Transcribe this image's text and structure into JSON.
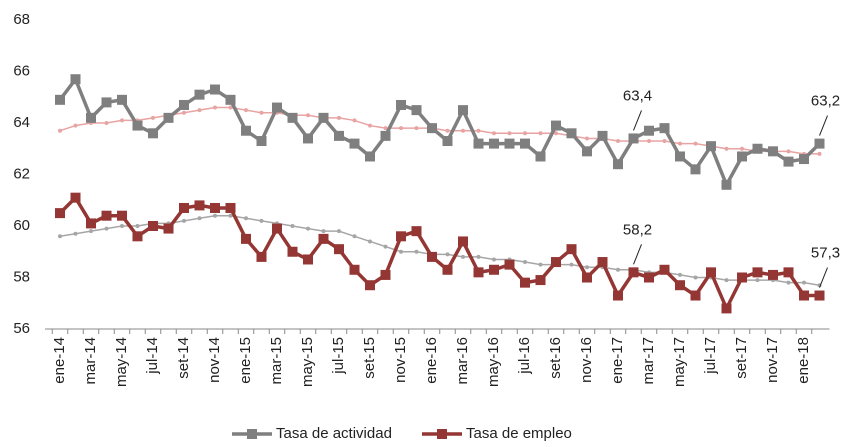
{
  "chart_data": {
    "type": "line",
    "categories": [
      "ene-14",
      null,
      "mar-14",
      null,
      "may-14",
      null,
      "jul-14",
      null,
      "set-14",
      null,
      "nov-14",
      null,
      "ene-15",
      null,
      "mar-15",
      null,
      "may-15",
      null,
      "jul-15",
      null,
      "set-15",
      null,
      "nov-15",
      null,
      "ene-16",
      null,
      "mar-16",
      null,
      "may-16",
      null,
      "jul-16",
      null,
      "set-16",
      null,
      "nov-16",
      null,
      "ene-17",
      null,
      "mar-17",
      null,
      "may-17",
      null,
      "jul-17",
      null,
      "set-17",
      null,
      "nov-17",
      null,
      "ene-18",
      null
    ],
    "series": [
      {
        "name": "Tasa de actividad",
        "color": "#7f7f7f",
        "marker": "square",
        "values": [
          64.9,
          65.7,
          64.2,
          64.8,
          64.9,
          63.9,
          63.6,
          64.2,
          64.7,
          65.1,
          65.3,
          64.9,
          63.7,
          63.3,
          64.6,
          64.2,
          63.4,
          64.2,
          63.5,
          63.2,
          62.7,
          63.5,
          64.7,
          64.5,
          63.8,
          63.3,
          64.5,
          63.2,
          63.2,
          63.2,
          63.2,
          62.7,
          63.9,
          63.6,
          62.9,
          63.5,
          62.4,
          63.4,
          63.7,
          63.8,
          62.7,
          62.2,
          63.1,
          61.6,
          62.7,
          63.0,
          62.9,
          62.5,
          62.6,
          63.2
        ],
        "value_labels": [
          null,
          null,
          null,
          null,
          null,
          null,
          null,
          null,
          null,
          null,
          null,
          null,
          null,
          null,
          null,
          null,
          null,
          null,
          null,
          null,
          null,
          null,
          null,
          null,
          null,
          null,
          null,
          null,
          null,
          null,
          null,
          null,
          null,
          null,
          null,
          null,
          null,
          "63,4",
          null,
          null,
          null,
          null,
          null,
          null,
          null,
          null,
          null,
          null,
          null,
          "63,2"
        ]
      },
      {
        "name": "Tasa de empleo",
        "color": "#943634",
        "marker": "square",
        "values": [
          60.5,
          61.1,
          60.1,
          60.4,
          60.4,
          59.6,
          60.0,
          59.9,
          60.7,
          60.8,
          60.7,
          60.7,
          59.5,
          58.8,
          59.9,
          59.0,
          58.7,
          59.5,
          59.1,
          58.3,
          57.7,
          58.1,
          59.6,
          59.8,
          58.8,
          58.3,
          59.4,
          58.2,
          58.3,
          58.5,
          57.8,
          57.9,
          58.6,
          59.1,
          58.0,
          58.6,
          57.3,
          58.2,
          58.0,
          58.3,
          57.7,
          57.3,
          58.2,
          56.8,
          58.0,
          58.2,
          58.1,
          58.2,
          57.3,
          57.3
        ],
        "value_labels": [
          null,
          null,
          null,
          null,
          null,
          null,
          null,
          null,
          null,
          null,
          null,
          null,
          null,
          null,
          null,
          null,
          null,
          null,
          null,
          null,
          null,
          null,
          null,
          null,
          null,
          null,
          null,
          null,
          null,
          null,
          null,
          null,
          null,
          null,
          null,
          null,
          null,
          "58,2",
          null,
          null,
          null,
          null,
          null,
          null,
          null,
          null,
          null,
          null,
          null,
          "57,3"
        ]
      },
      {
        "color": "#e8a3a3",
        "marker": "dot",
        "values": [
          63.7,
          63.9,
          64.0,
          64.0,
          64.1,
          64.1,
          64.2,
          64.3,
          64.4,
          64.5,
          64.6,
          64.6,
          64.5,
          64.4,
          64.4,
          64.3,
          64.3,
          64.2,
          64.2,
          64.1,
          63.9,
          63.8,
          63.8,
          63.8,
          63.8,
          63.7,
          63.7,
          63.7,
          63.6,
          63.6,
          63.6,
          63.6,
          63.6,
          63.5,
          63.4,
          63.4,
          63.3,
          63.3,
          63.3,
          63.3,
          63.2,
          63.2,
          63.1,
          63.0,
          63.0,
          62.9,
          62.9,
          62.9,
          62.8,
          62.8
        ]
      },
      {
        "color": "#a6a6a6",
        "marker": "dot",
        "values": [
          59.6,
          59.7,
          59.8,
          59.9,
          60.0,
          60.0,
          60.1,
          60.1,
          60.2,
          60.3,
          60.4,
          60.4,
          60.3,
          60.2,
          60.1,
          60.0,
          59.9,
          59.8,
          59.8,
          59.6,
          59.4,
          59.2,
          59.0,
          59.0,
          58.9,
          58.9,
          58.8,
          58.8,
          58.7,
          58.7,
          58.6,
          58.5,
          58.5,
          58.5,
          58.4,
          58.4,
          58.3,
          58.3,
          58.2,
          58.2,
          58.1,
          58.0,
          58.0,
          57.9,
          57.9,
          57.9,
          57.9,
          57.8,
          57.8,
          57.7
        ]
      }
    ],
    "ylim": [
      56,
      68
    ],
    "yticks": [
      56,
      58,
      60,
      62,
      64,
      66,
      68
    ],
    "grid": false,
    "legend": "bottom"
  }
}
